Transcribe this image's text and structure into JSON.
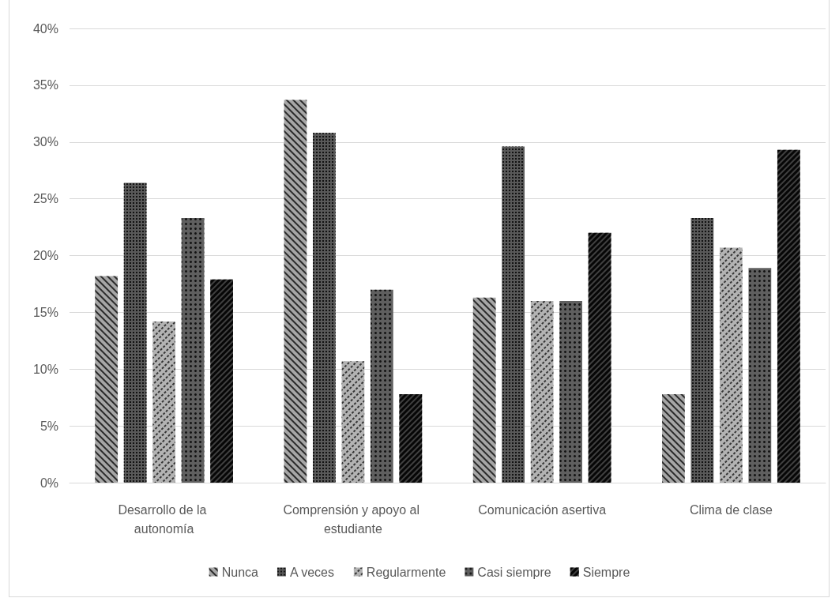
{
  "chart_data": {
    "type": "bar",
    "categories": [
      "Desarrollo de la autonomía",
      "Comprensión y apoyo al estudiante",
      "Comunicación asertiva",
      "Clima de clase"
    ],
    "series": [
      {
        "name": "Nunca",
        "color": "#a6a6a6",
        "values": [
          18.2,
          33.7,
          16.3,
          7.8
        ]
      },
      {
        "name": "A veces",
        "color": "#595959",
        "values": [
          26.4,
          30.8,
          29.6,
          23.3
        ]
      },
      {
        "name": "Regularmente",
        "color": "#b3b3b3",
        "values": [
          14.2,
          10.7,
          16.0,
          20.7
        ]
      },
      {
        "name": "Casi siempre",
        "color": "#5f5f5f",
        "values": [
          23.3,
          17.0,
          16.0,
          18.9
        ]
      },
      {
        "name": "Siempre",
        "color": "#404040",
        "values": [
          17.9,
          7.8,
          22.0,
          29.3
        ]
      }
    ],
    "ylim": [
      0,
      40
    ],
    "yticks": [
      {
        "value": 0,
        "label": "0%"
      },
      {
        "value": 5,
        "label": "5%"
      },
      {
        "value": 10,
        "label": "10%"
      },
      {
        "value": 15,
        "label": "15%"
      },
      {
        "value": 20,
        "label": "20%"
      },
      {
        "value": 25,
        "label": "25%"
      },
      {
        "value": 30,
        "label": "30%"
      },
      {
        "value": 35,
        "label": "35%"
      },
      {
        "value": 40,
        "label": "40%"
      }
    ],
    "grid": "y",
    "legend": "bottom"
  }
}
